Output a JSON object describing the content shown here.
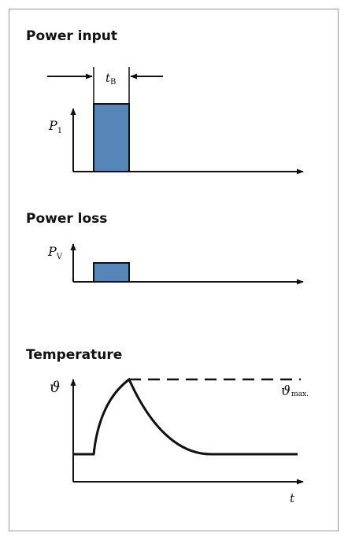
{
  "panels": {
    "power_input": {
      "title": "Power input",
      "axis_label": "P",
      "axis_subscript": "1",
      "duration_label": "t",
      "duration_subscript": "B"
    },
    "power_loss": {
      "title": "Power loss",
      "axis_label": "P",
      "axis_subscript": "V"
    },
    "temperature": {
      "title": "Temperature",
      "axis_label": "ϑ",
      "max_label": "ϑ",
      "max_subscript": "max.",
      "time_label": "t"
    }
  },
  "colors": {
    "pulse_fill": "#5686b8",
    "line": "#111111"
  }
}
